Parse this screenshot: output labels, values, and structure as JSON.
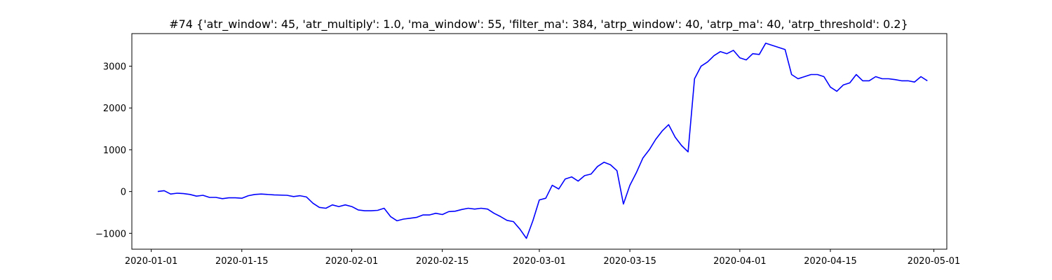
{
  "chart_data": {
    "type": "line",
    "title": "#74 {'atr_window': 45, 'atr_multiply': 1.0, 'ma_window': 55, 'filter_ma': 384, 'atrp_window': 40, 'atrp_ma': 40, 'atrp_threshold': 0.2}",
    "xlabel": "",
    "ylabel": "",
    "x_axis_type": "date",
    "xlim": [
      "2019-12-29",
      "2020-05-03"
    ],
    "ylim": [
      -1380,
      3780
    ],
    "grid": false,
    "legend": "none",
    "x_tick_labels": [
      "2020-01-01",
      "2020-01-15",
      "2020-02-01",
      "2020-02-15",
      "2020-03-01",
      "2020-03-15",
      "2020-04-01",
      "2020-04-15",
      "2020-05-01"
    ],
    "y_ticks": [
      -1000,
      0,
      1000,
      2000,
      3000
    ],
    "y_tick_labels": [
      "−1000",
      "0",
      "1000",
      "2000",
      "3000"
    ],
    "series": [
      {
        "color": "#0000ff",
        "x": [
          "2020-01-02",
          "2020-01-03",
          "2020-01-04",
          "2020-01-05",
          "2020-01-06",
          "2020-01-07",
          "2020-01-08",
          "2020-01-09",
          "2020-01-10",
          "2020-01-11",
          "2020-01-12",
          "2020-01-13",
          "2020-01-14",
          "2020-01-15",
          "2020-01-16",
          "2020-01-17",
          "2020-01-18",
          "2020-01-20",
          "2020-01-22",
          "2020-01-23",
          "2020-01-24",
          "2020-01-25",
          "2020-01-26",
          "2020-01-27",
          "2020-01-28",
          "2020-01-29",
          "2020-01-30",
          "2020-01-31",
          "2020-02-01",
          "2020-02-02",
          "2020-02-03",
          "2020-02-04",
          "2020-02-05",
          "2020-02-06",
          "2020-02-07",
          "2020-02-08",
          "2020-02-09",
          "2020-02-10",
          "2020-02-11",
          "2020-02-12",
          "2020-02-13",
          "2020-02-14",
          "2020-02-15",
          "2020-02-16",
          "2020-02-17",
          "2020-02-18",
          "2020-02-19",
          "2020-02-20",
          "2020-02-21",
          "2020-02-22",
          "2020-02-23",
          "2020-02-24",
          "2020-02-25",
          "2020-02-26",
          "2020-02-27",
          "2020-02-28",
          "2020-02-29",
          "2020-03-01",
          "2020-03-02",
          "2020-03-03",
          "2020-03-04",
          "2020-03-05",
          "2020-03-06",
          "2020-03-07",
          "2020-03-08",
          "2020-03-09",
          "2020-03-10",
          "2020-03-11",
          "2020-03-12",
          "2020-03-13",
          "2020-03-14",
          "2020-03-15",
          "2020-03-16",
          "2020-03-17",
          "2020-03-18",
          "2020-03-19",
          "2020-03-20",
          "2020-03-21",
          "2020-03-22",
          "2020-03-23",
          "2020-03-24",
          "2020-03-25",
          "2020-03-26",
          "2020-03-27",
          "2020-03-28",
          "2020-03-29",
          "2020-03-30",
          "2020-03-31",
          "2020-04-01",
          "2020-04-02",
          "2020-04-03",
          "2020-04-04",
          "2020-04-05",
          "2020-04-06",
          "2020-04-07",
          "2020-04-08",
          "2020-04-09",
          "2020-04-10",
          "2020-04-11",
          "2020-04-12",
          "2020-04-13",
          "2020-04-14",
          "2020-04-15",
          "2020-04-16",
          "2020-04-17",
          "2020-04-18",
          "2020-04-19",
          "2020-04-20",
          "2020-04-21",
          "2020-04-22",
          "2020-04-23",
          "2020-04-24",
          "2020-04-25",
          "2020-04-26",
          "2020-04-27",
          "2020-04-28",
          "2020-04-29",
          "2020-04-30"
        ],
        "values": [
          0,
          20,
          -60,
          -40,
          -50,
          -70,
          -110,
          -90,
          -140,
          -140,
          -170,
          -150,
          -150,
          -160,
          -100,
          -70,
          -60,
          -80,
          -90,
          -120,
          -100,
          -130,
          -280,
          -380,
          -400,
          -320,
          -360,
          -320,
          -360,
          -440,
          -460,
          -460,
          -450,
          -400,
          -600,
          -700,
          -660,
          -640,
          -620,
          -560,
          -560,
          -520,
          -550,
          -480,
          -470,
          -430,
          -400,
          -420,
          -400,
          -420,
          -520,
          -600,
          -690,
          -720,
          -900,
          -1120,
          -700,
          -200,
          -160,
          150,
          60,
          300,
          350,
          250,
          380,
          420,
          600,
          700,
          640,
          500,
          -300,
          150,
          450,
          800,
          1000,
          1250,
          1450,
          1600,
          1300,
          1100,
          950,
          2700,
          3000,
          3100,
          3250,
          3350,
          3300,
          3380,
          3200,
          3150,
          3300,
          3280,
          3550,
          3500,
          3450,
          3400,
          2800,
          2700,
          2750,
          2800,
          2800,
          2750,
          2500,
          2400,
          2550,
          2600,
          2800,
          2650,
          2650,
          2750,
          2700,
          2700,
          2680,
          2650,
          2650,
          2620,
          2750,
          2650
        ]
      }
    ]
  }
}
